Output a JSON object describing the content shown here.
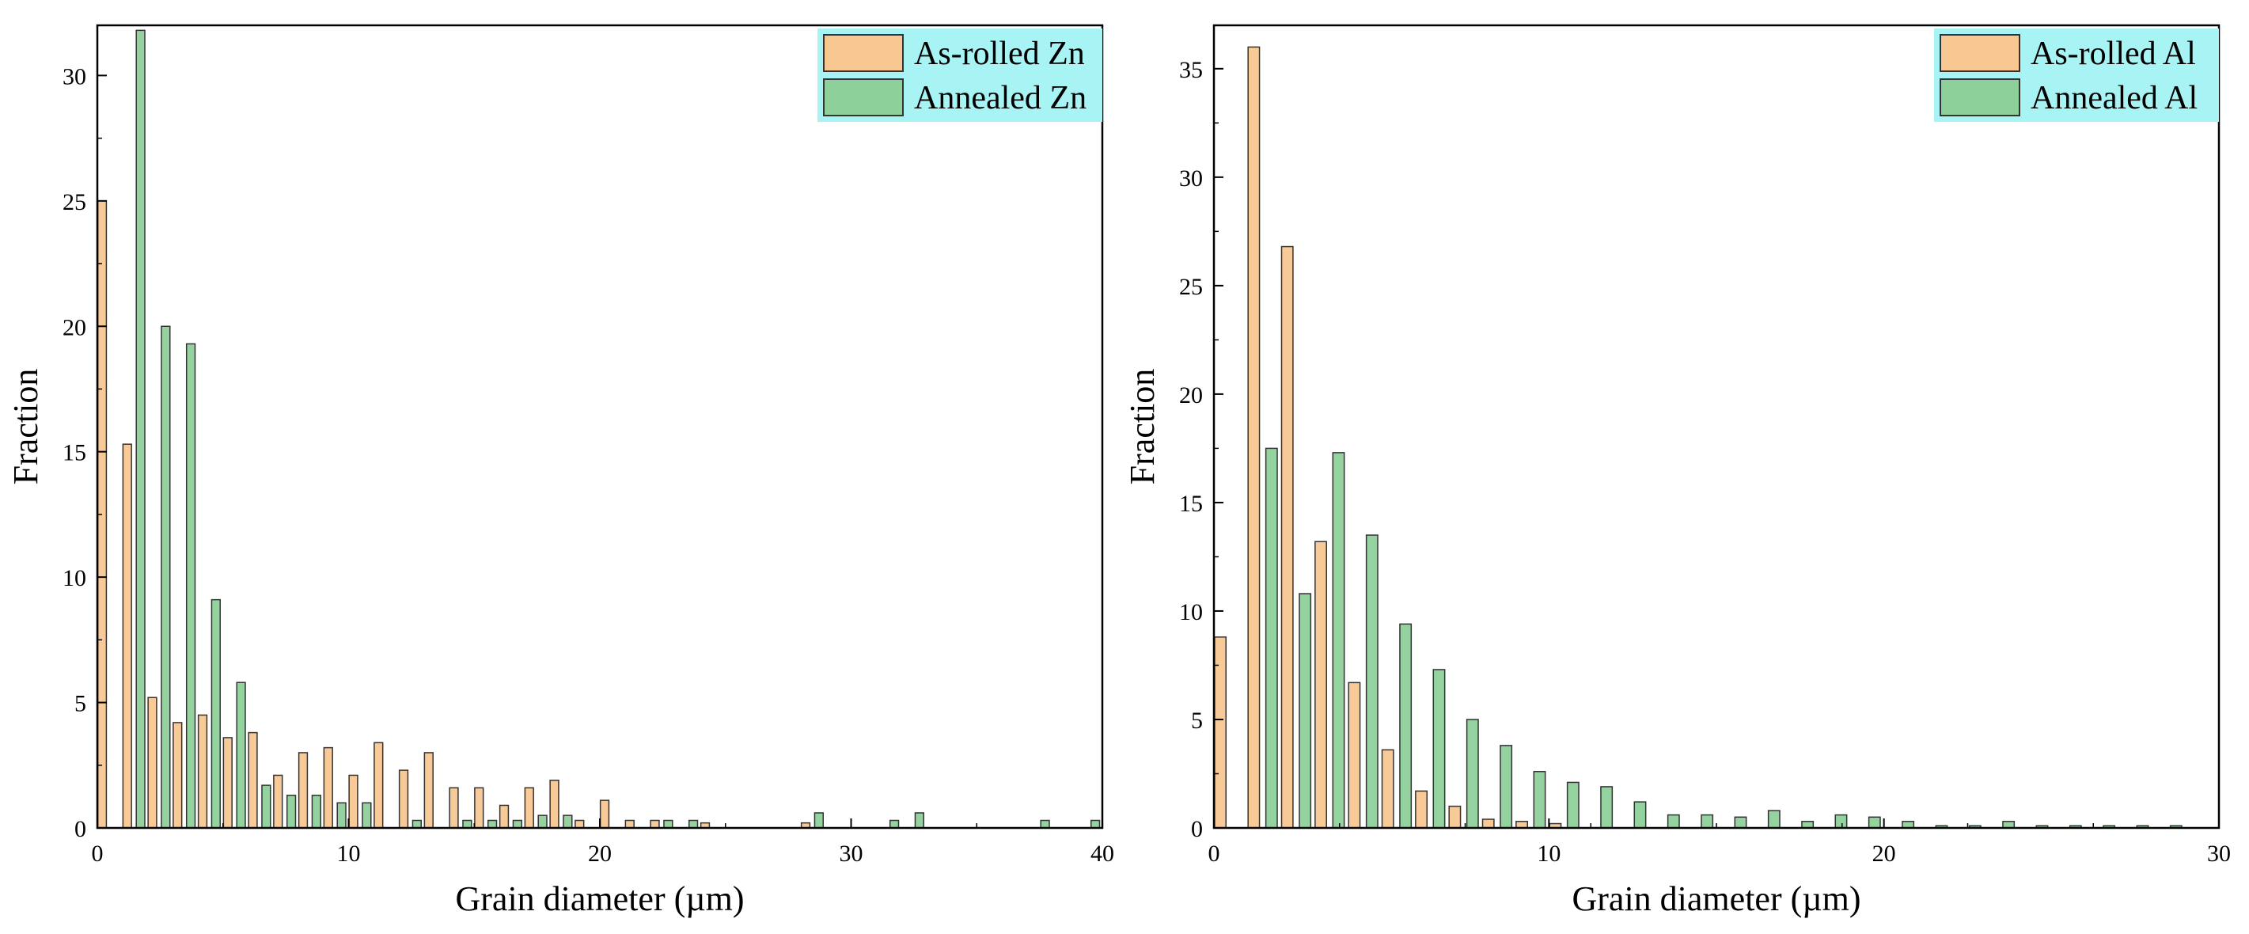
{
  "figure": {
    "description_free": true
  },
  "colors": {
    "series_a": "#f8c792",
    "series_b": "#8ed09a",
    "stroke": "#333333",
    "legend_bg": "#a8f3f3"
  },
  "chart_data": [
    {
      "type": "bar",
      "title": "",
      "xlabel": "Grain diameter  (µm)",
      "ylabel": "Fraction",
      "xlim": [
        0,
        40
      ],
      "ylim": [
        0,
        32
      ],
      "xticks": [
        0,
        10,
        20,
        30,
        40
      ],
      "xtick_labels": [
        "0",
        "10",
        "20",
        "30",
        "40"
      ],
      "yticks": [
        0,
        5,
        10,
        15,
        20,
        25,
        30
      ],
      "ytick_labels": [
        "0",
        "5",
        "10",
        "15",
        "20",
        "25",
        "30"
      ],
      "bin_width": 1,
      "legend_position": "top-right",
      "series": [
        {
          "name": "As-rolled Zn",
          "color": "#f8c792",
          "x": [
            0,
            1,
            2,
            3,
            4,
            5,
            6,
            7,
            8,
            9,
            10,
            11,
            12,
            13,
            14,
            15,
            16,
            17,
            18,
            19,
            20,
            21,
            22,
            24,
            28
          ],
          "values": [
            25,
            15.3,
            5.2,
            4.2,
            4.5,
            3.6,
            3.8,
            2.1,
            3.0,
            3.2,
            2.1,
            3.4,
            2.3,
            3.0,
            1.6,
            1.6,
            0.9,
            1.6,
            1.9,
            0.3,
            1.1,
            0.3,
            0.3,
            0.2,
            0.2
          ]
        },
        {
          "name": "Annealed Zn",
          "color": "#8ed09a",
          "x": [
            1,
            2,
            3,
            4,
            5,
            6,
            7,
            8,
            9,
            10,
            12,
            14,
            15,
            16,
            17,
            18,
            22,
            23,
            28,
            31,
            32,
            37,
            39
          ],
          "values": [
            31.8,
            20.0,
            19.3,
            9.1,
            5.8,
            1.7,
            1.3,
            1.3,
            1.0,
            1.0,
            0.3,
            0.3,
            0.3,
            0.3,
            0.5,
            0.5,
            0.3,
            0.3,
            0.6,
            0.3,
            0.6,
            0.3,
            0.3
          ]
        }
      ]
    },
    {
      "type": "bar",
      "title": "",
      "xlabel": "Grain diameter  (µm)",
      "ylabel": "Fraction",
      "xlim": [
        0,
        30
      ],
      "ylim": [
        0,
        37
      ],
      "xticks": [
        0,
        10,
        20,
        30
      ],
      "xtick_labels": [
        "0",
        "10",
        "20",
        "30"
      ],
      "yticks": [
        0,
        5,
        10,
        15,
        20,
        25,
        30,
        35
      ],
      "ytick_labels": [
        "0",
        "5",
        "10",
        "15",
        "20",
        "25",
        "30",
        "35"
      ],
      "bin_width": 1,
      "legend_position": "top-right",
      "series": [
        {
          "name": "As-rolled Al",
          "color": "#f8c792",
          "x": [
            0,
            1,
            2,
            3,
            4,
            5,
            6,
            7,
            8,
            9,
            10
          ],
          "values": [
            8.8,
            36.0,
            26.8,
            13.2,
            6.7,
            3.6,
            1.7,
            1.0,
            0.4,
            0.3,
            0.2
          ]
        },
        {
          "name": "Annealed Al",
          "color": "#8ed09a",
          "x": [
            1,
            2,
            3,
            4,
            5,
            6,
            7,
            8,
            9,
            10,
            11,
            12,
            13,
            14,
            15,
            16,
            17,
            18,
            19,
            20,
            21,
            22,
            23,
            24,
            25,
            26,
            27,
            28
          ],
          "values": [
            17.5,
            10.8,
            17.3,
            13.5,
            9.4,
            7.3,
            5.0,
            3.8,
            2.6,
            2.1,
            1.9,
            1.2,
            0.6,
            0.6,
            0.5,
            0.8,
            0.3,
            0.6,
            0.5,
            0.3,
            0.1,
            0.1,
            0.3,
            0.1,
            0.1,
            0.1,
            0.1,
            0.1
          ]
        }
      ]
    }
  ]
}
